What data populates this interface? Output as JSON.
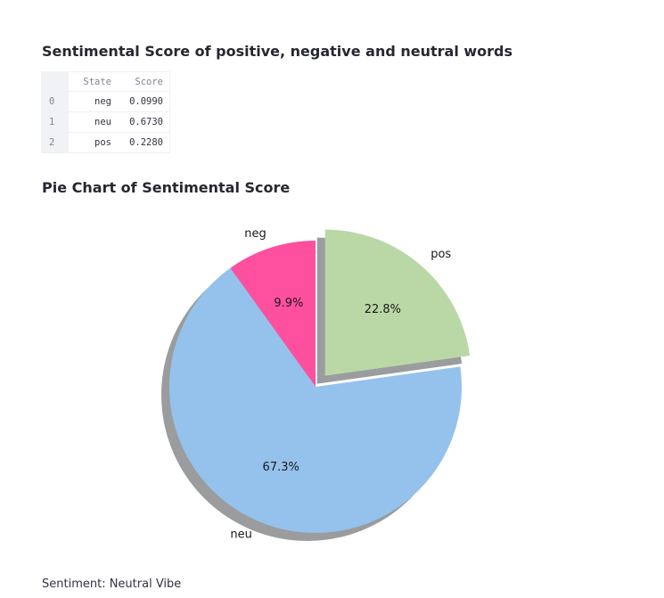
{
  "table_section": {
    "title": "Sentimental Score of positive, negative and neutral words",
    "columns": [
      "State",
      "Score"
    ],
    "rows": [
      {
        "index": "0",
        "state": "neg",
        "score": "0.0990"
      },
      {
        "index": "1",
        "state": "neu",
        "score": "0.6730"
      },
      {
        "index": "2",
        "state": "pos",
        "score": "0.2280"
      }
    ]
  },
  "pie_section": {
    "title": "Pie Chart of Sentimental Score"
  },
  "chart_data": {
    "type": "pie",
    "title": "",
    "start_angle_deg": 90,
    "counterclock": true,
    "shadow": true,
    "slices": [
      {
        "label": "neg",
        "value": 0.099,
        "pct_text": "9.9%",
        "color": "#ff4f9f",
        "explode": 0
      },
      {
        "label": "neu",
        "value": 0.673,
        "pct_text": "67.3%",
        "color": "#94c2ec",
        "explode": 0
      },
      {
        "label": "pos",
        "value": 0.228,
        "pct_text": "22.8%",
        "color": "#bad8a6",
        "explode": 0.1
      }
    ]
  },
  "footer": {
    "sentiment_text": "Sentiment: Neutral Vibe"
  }
}
